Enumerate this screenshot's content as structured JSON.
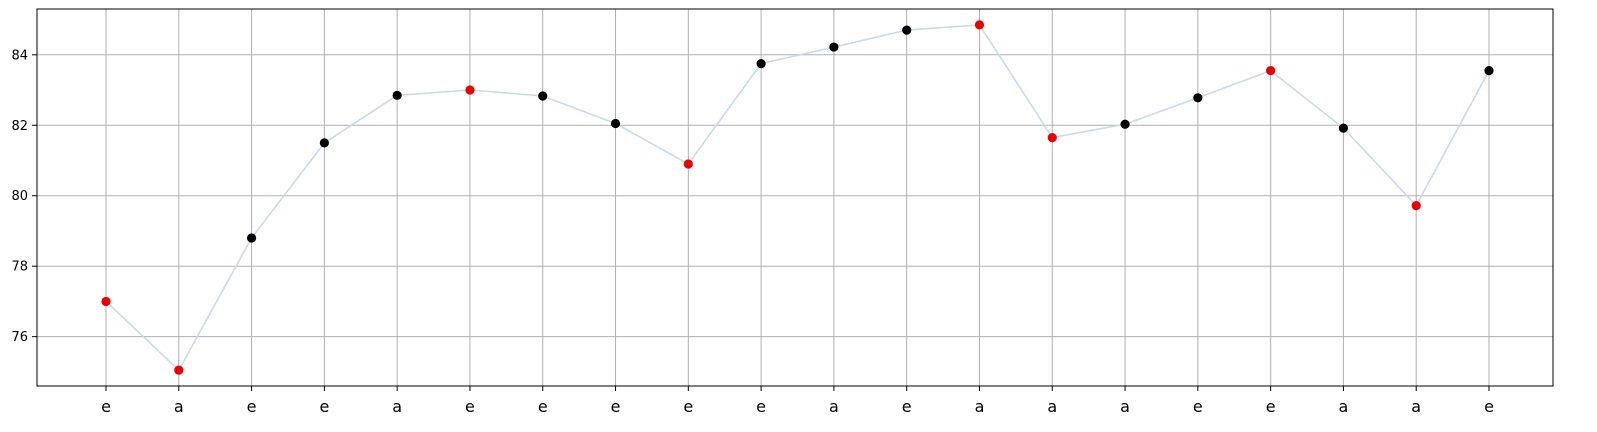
{
  "chart_data": {
    "type": "line",
    "title": "",
    "xlabel": "",
    "ylabel": "",
    "categories": [
      "e",
      "a",
      "e",
      "e",
      "a",
      "e",
      "e",
      "e",
      "e",
      "e",
      "a",
      "e",
      "a",
      "a",
      "a",
      "e",
      "e",
      "a",
      "a",
      "e"
    ],
    "series": [
      {
        "values": [
          77.0,
          75.05,
          78.8,
          81.5,
          82.85,
          83.0,
          82.83,
          82.05,
          80.9,
          83.75,
          84.22,
          84.7,
          84.85,
          81.65,
          82.03,
          82.78,
          83.55,
          81.92,
          79.72,
          83.55
        ],
        "highlighted": [
          true,
          true,
          false,
          false,
          false,
          true,
          false,
          false,
          true,
          false,
          false,
          false,
          true,
          true,
          false,
          false,
          true,
          false,
          true,
          false
        ]
      }
    ],
    "ylim": [
      74.6,
      85.3
    ],
    "yticks": [
      76,
      78,
      80,
      82,
      84
    ],
    "grid": true,
    "colors": {
      "line": "#c6dcee",
      "marker_default": "#000000",
      "marker_highlight": "#ee0000",
      "grid": "#b0b0b0"
    }
  }
}
